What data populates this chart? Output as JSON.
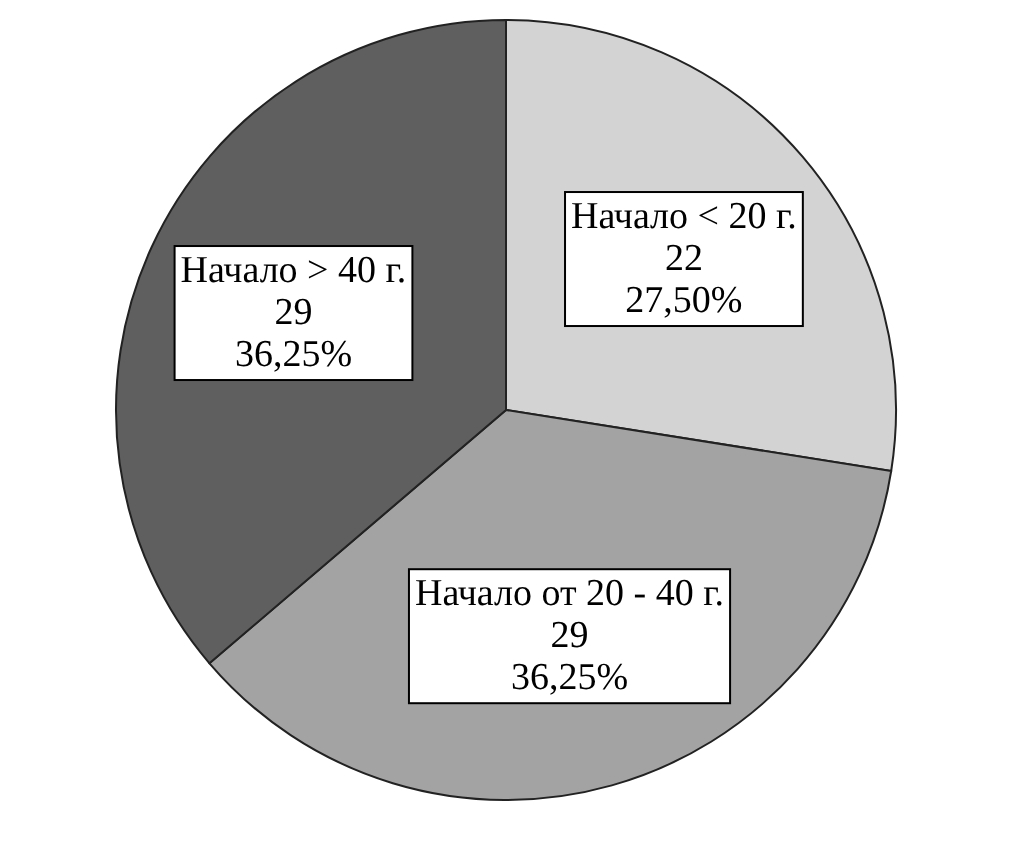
{
  "chart_data": {
    "type": "pie",
    "categories": [
      "Начало < 20 г.",
      "Начало от 20 - 40 г.",
      "Начало > 40 г."
    ],
    "values": [
      22,
      29,
      29
    ],
    "colors": [
      "#d3d3d3",
      "#a3a3a3",
      "#5f5f5f"
    ],
    "data_labels": true,
    "annotations": [
      "27,50%",
      "36,25%",
      "36,25%"
    ],
    "legend": false
  }
}
